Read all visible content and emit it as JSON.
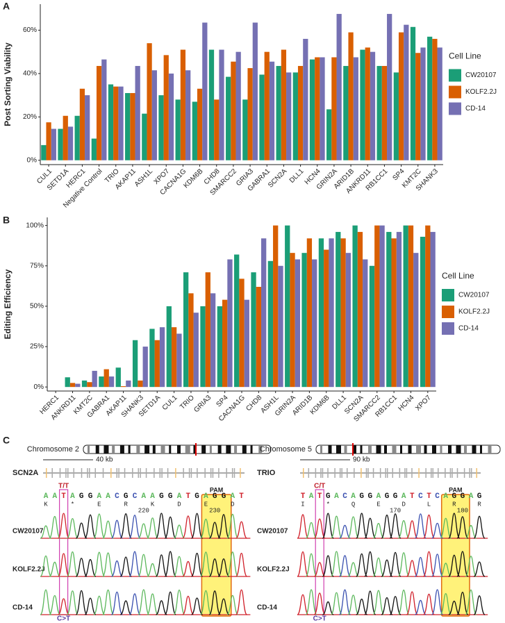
{
  "chart_data": [
    {
      "type": "bar",
      "panel": "A",
      "y_label": "Post Sorting Viability",
      "categories": [
        "CUL1",
        "SETD1A",
        "HERC1",
        "Negative Control",
        "TRIO",
        "AKAP11",
        "ASH1L",
        "XPO7",
        "CACNA1G",
        "KDM6B",
        "CHD8",
        "SMARCC2",
        "GRIA3",
        "GABRA1",
        "SCN2A",
        "DLL1",
        "HCN4",
        "GRIN2A",
        "ARID1B",
        "ANKRD11",
        "RB1CC1",
        "SP4",
        "KMT2C",
        "SHANK3"
      ],
      "series": [
        {
          "name": "CW20107",
          "color": "#1b9e77",
          "values": [
            7,
            14.5,
            20.5,
            10,
            35,
            31,
            21.5,
            30,
            28,
            27,
            51,
            38.5,
            28,
            39.5,
            43.5,
            40.5,
            46.5,
            23.5,
            43.5,
            51,
            43.5,
            40.5,
            61.5,
            57
          ]
        },
        {
          "name": "KOLF2.2J",
          "color": "#d95f02",
          "values": [
            17.5,
            20.5,
            33,
            43.5,
            34,
            31,
            54,
            48.5,
            51,
            33,
            28,
            45.5,
            42.5,
            50,
            51,
            43.5,
            47.5,
            47.5,
            59,
            52,
            43.5,
            59,
            49.5,
            56
          ]
        },
        {
          "name": "CD-14",
          "color": "#7570b3",
          "values": [
            14.5,
            15.5,
            30,
            46.5,
            34,
            43.5,
            41.5,
            40,
            41.5,
            63.5,
            51,
            50,
            63.5,
            45.5,
            40.5,
            56,
            47.5,
            67.5,
            47.5,
            50,
            67.5,
            62.5,
            52,
            52
          ]
        }
      ],
      "legend_title": "Cell Line",
      "legend": "right",
      "ylim": [
        -2,
        72
      ],
      "yticks": [
        {
          "value": 0,
          "label": "0%"
        },
        {
          "value": 20,
          "label": "20%"
        },
        {
          "value": 40,
          "label": "40%"
        },
        {
          "value": 60,
          "label": "60%"
        }
      ]
    },
    {
      "type": "bar",
      "panel": "B",
      "y_label": "Editing Efficiency",
      "categories": [
        "HERC1",
        "ANKRD11",
        "KMT2C",
        "GABRA1",
        "AKAP11",
        "SHANK3",
        "SETD1A",
        "CUL1",
        "TRIO",
        "GRIA3",
        "SP4",
        "CACNA1G",
        "CHD8",
        "ASH1L",
        "GRIN2A",
        "ARID1B",
        "KDM6B",
        "DLL1",
        "SCN2A",
        "SMARCC2",
        "RB1CC1",
        "HCN4",
        "XPO7"
      ],
      "series": [
        {
          "name": "CW20107",
          "color": "#1b9e77",
          "values": [
            0,
            6,
            4,
            6.5,
            12,
            29,
            36,
            50,
            71,
            50,
            50,
            82,
            71,
            78,
            100,
            83,
            92,
            96,
            100,
            75,
            96,
            100,
            93
          ]
        },
        {
          "name": "KOLF2.2J",
          "color": "#d95f02",
          "values": [
            0,
            2.5,
            3,
            11,
            0.5,
            4,
            29,
            37,
            58,
            71,
            54,
            67,
            62,
            100,
            83,
            92,
            85,
            92,
            96,
            100,
            92,
            100,
            100
          ]
        },
        {
          "name": "CD-14",
          "color": "#7570b3",
          "values": [
            0,
            2,
            10,
            6.5,
            4,
            25,
            37,
            33,
            46,
            58,
            79,
            54,
            92,
            75,
            79,
            79,
            92,
            83,
            79,
            100,
            96,
            83,
            96
          ]
        }
      ],
      "legend_title": "Cell Line",
      "legend": "right",
      "ylim": [
        -2.5,
        105
      ],
      "yticks": [
        {
          "value": 0,
          "label": "0%"
        },
        {
          "value": 25,
          "label": "25%"
        },
        {
          "value": 50,
          "label": "50%"
        },
        {
          "value": 75,
          "label": "75%"
        },
        {
          "value": 100,
          "label": "100%"
        }
      ]
    }
  ],
  "panel_c": {
    "panel": "C",
    "pam": "PAM",
    "rows": [
      "CW20107",
      "KOLF2.2J",
      "CD-14"
    ],
    "left": {
      "chromosome": "Chromosome 2",
      "scale": "40 kb",
      "gene": "SCN2A",
      "genotype": "T/T",
      "change": "C>T",
      "bases": [
        "A",
        "A",
        "T",
        "A",
        "G",
        "G",
        "A",
        "A",
        "C",
        "G",
        "C",
        "A",
        "A",
        "G",
        "G",
        "A",
        "T",
        "G",
        "A",
        "G",
        "G",
        "A",
        "T"
      ],
      "amino_acids": [
        "K",
        "*",
        "E",
        "R",
        "K",
        "D",
        "E",
        "D"
      ],
      "positions": [
        "220",
        "230"
      ]
    },
    "right": {
      "chromosome": "Chromosome 5",
      "scale": "90 kb",
      "gene": "TRIO",
      "genotype": "C/T",
      "change": "C>T",
      "bases": [
        "T",
        "A",
        "T",
        "G",
        "A",
        "C",
        "A",
        "G",
        "G",
        "A",
        "G",
        "G",
        "A",
        "T",
        "C",
        "T",
        "C",
        "A",
        "G",
        "G",
        "A",
        "G"
      ],
      "amino_acids": [
        "I",
        "*",
        "Q",
        "E",
        "D",
        "L",
        "R",
        "R"
      ],
      "positions": [
        "170",
        "180"
      ]
    }
  }
}
